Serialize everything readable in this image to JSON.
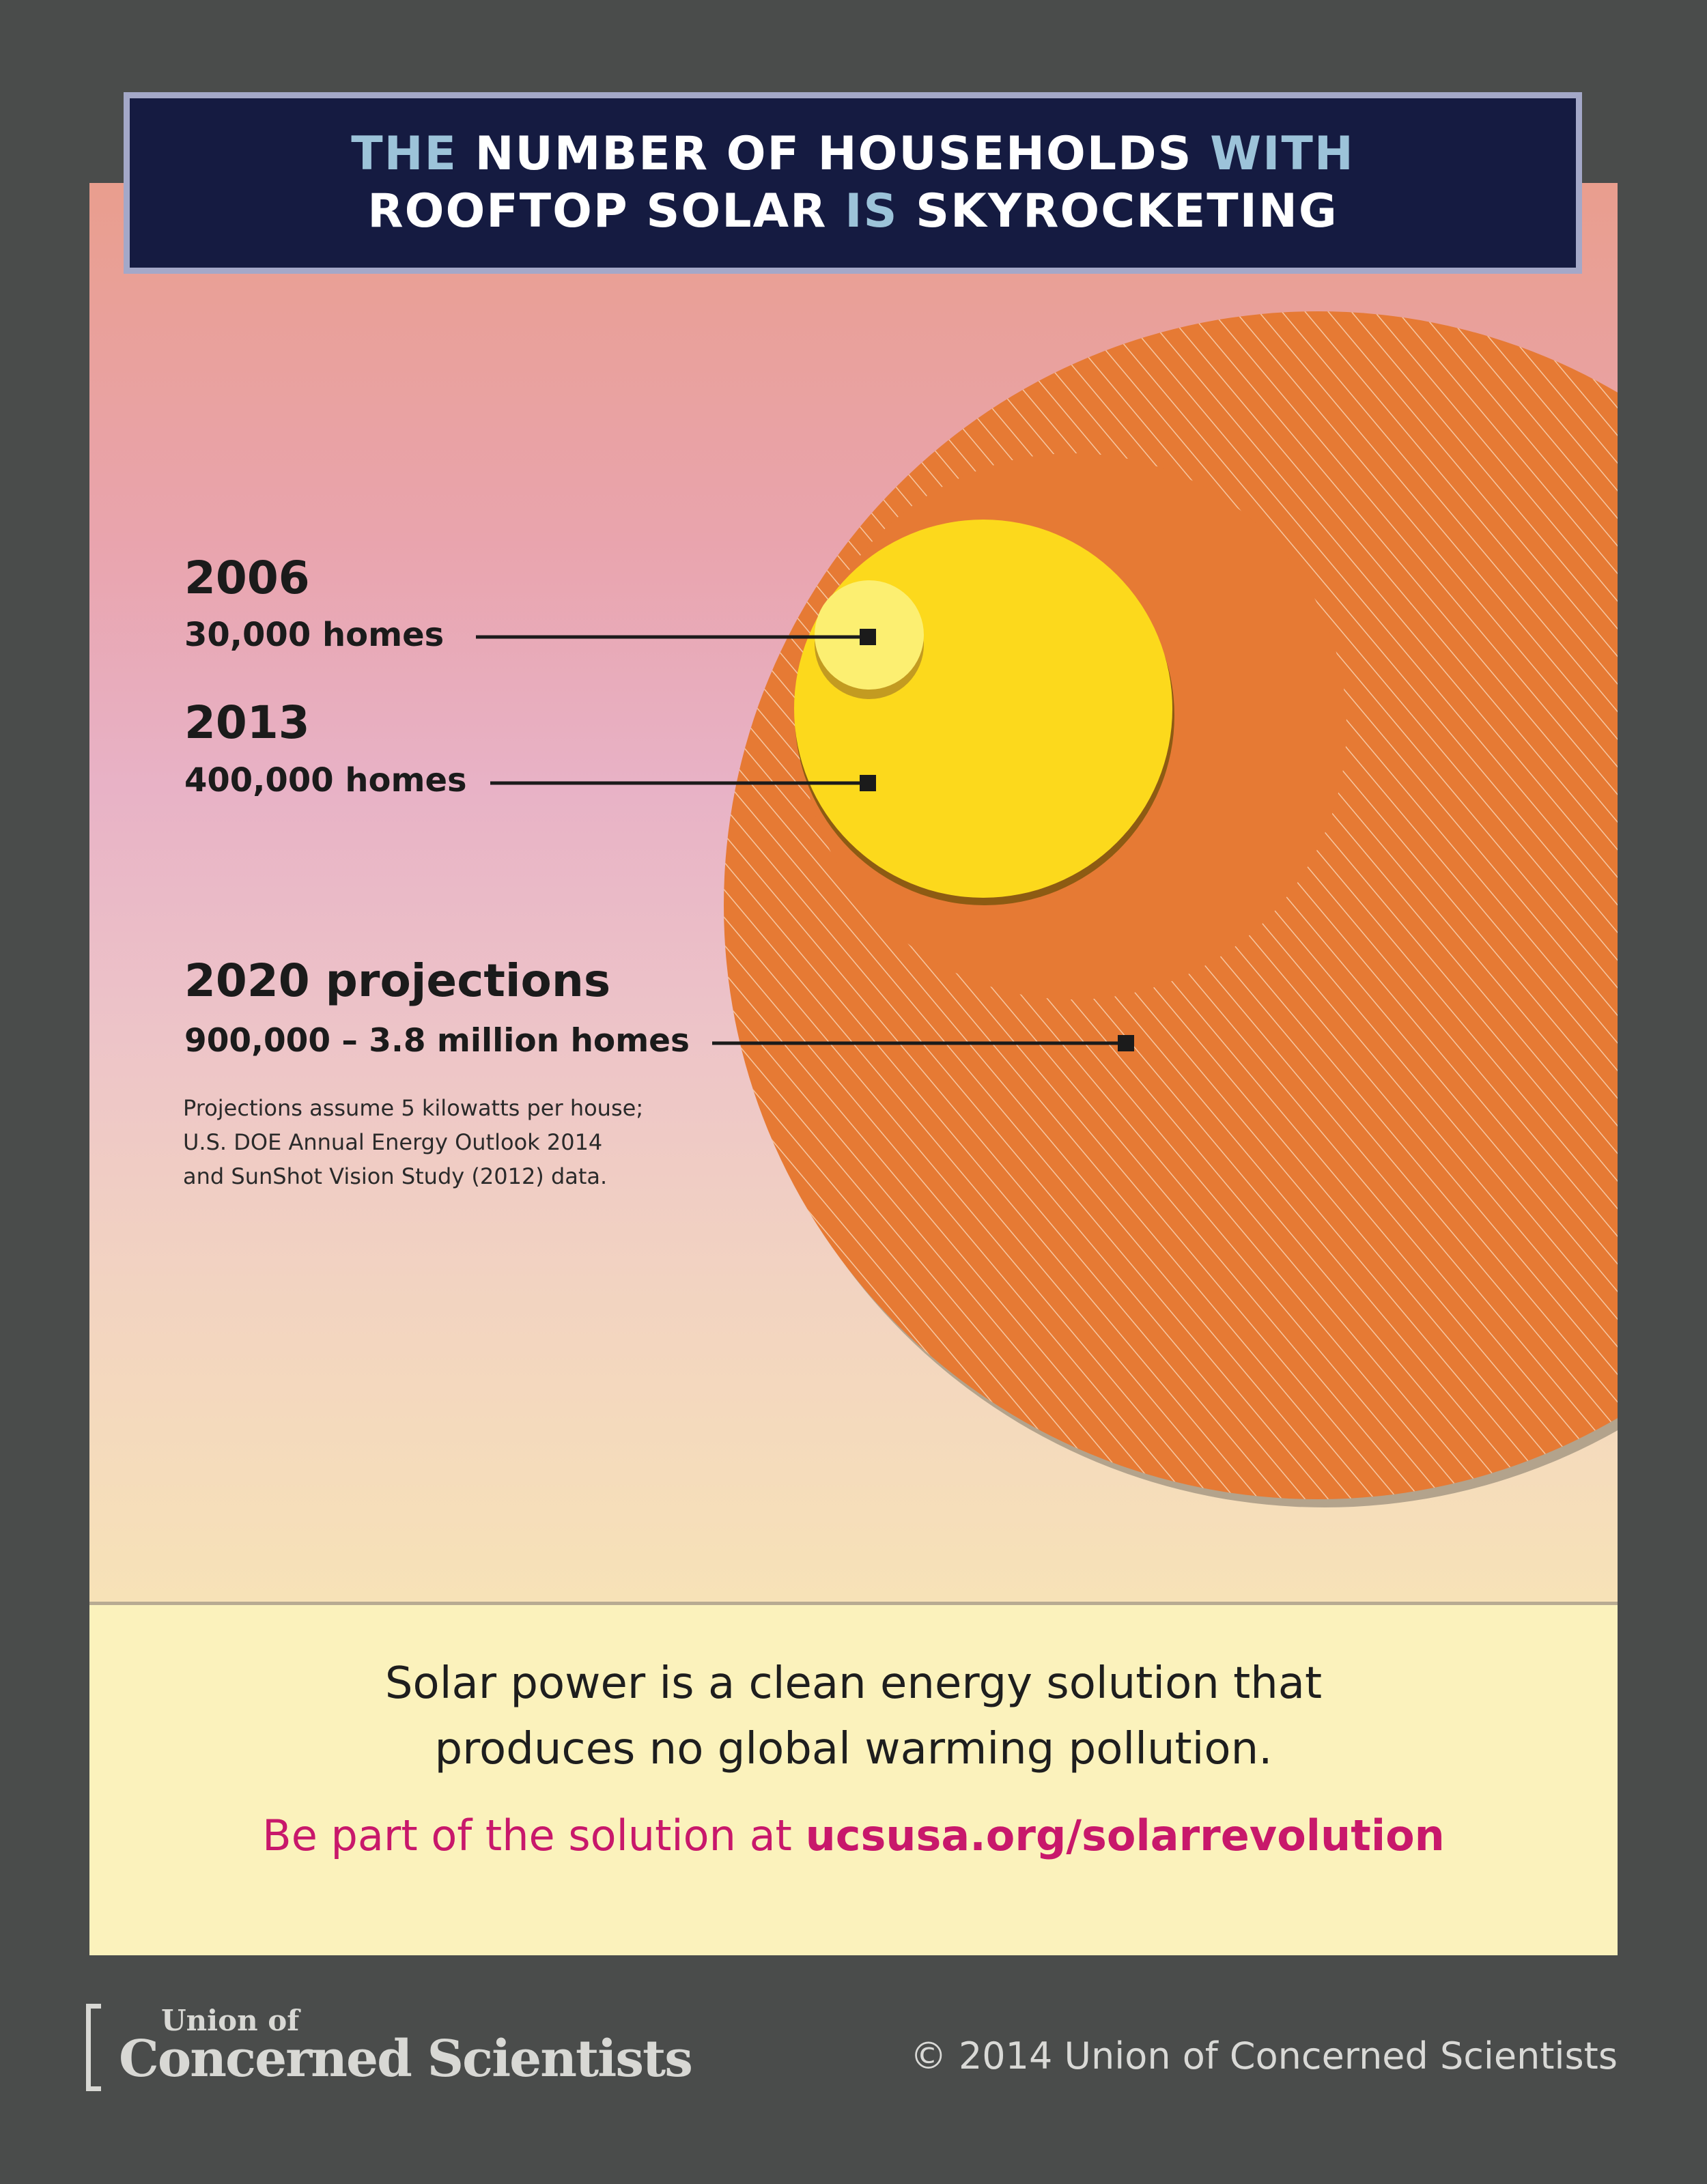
{
  "title": {
    "line1": [
      {
        "text": "THE ",
        "style": "light"
      },
      {
        "text": "NUMBER OF HOUSEHOLDS ",
        "style": "bold"
      },
      {
        "text": "WITH",
        "style": "light"
      }
    ],
    "line2": [
      {
        "text": "ROOFTOP SOLAR ",
        "style": "bold"
      },
      {
        "text": "IS ",
        "style": "light"
      },
      {
        "text": "SKYROCKETING",
        "style": "bold"
      }
    ]
  },
  "milestones": [
    {
      "year": "2006",
      "homes": "30,000 homes"
    },
    {
      "year": "2013",
      "homes": "400,000 homes"
    },
    {
      "year": "2020 projections",
      "homes": "900,000 – 3.8 million homes"
    }
  ],
  "footnote": [
    "Projections assume 5 kilowatts per house;",
    "U.S. DOE Annual Energy Outlook 2014",
    "and SunShot Vision Study (2012) data."
  ],
  "message": {
    "line1": "Solar power is a clean energy solution that",
    "line2": "produces no global warming pollution."
  },
  "cta": {
    "prefix": "Be part of the solution at ",
    "url": "ucsusa.org/solarrevolution"
  },
  "logo": {
    "top": "Union of",
    "main": "Concerned Scientists"
  },
  "copyright": "© 2014 Union of Concerned Scientists",
  "colors": {
    "background": "#4a4c4b",
    "title_box": "#151b41",
    "title_accent": "#9cc3d9",
    "circle_2020_high": "#e67a34",
    "circle_2013": "#fcd91c",
    "circle_2006": "#fcef71",
    "cta": "#c8186b",
    "footer_band": "#fbf2bc"
  }
}
